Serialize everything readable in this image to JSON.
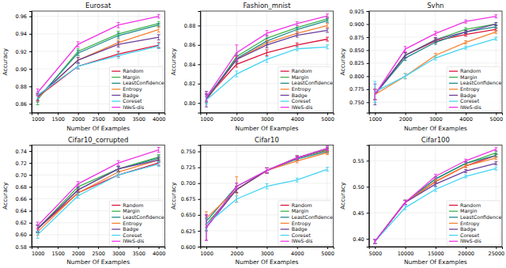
{
  "chart_data": [
    {
      "type": "line",
      "title": "Eurosat",
      "x_label": "Number Of Examples",
      "y_label": "Accuracy",
      "x": [
        1000,
        2000,
        3000,
        4000
      ],
      "xlim": [
        850,
        4150
      ],
      "xticks": [
        1000,
        1500,
        2000,
        2500,
        3000,
        3500,
        4000
      ],
      "ylim": [
        0.85,
        0.966
      ],
      "yticks": [
        0.86,
        0.88,
        {
          "value": 0.9,
          "label": "0.90"
        },
        0.92,
        0.94,
        0.96
      ],
      "grid": true,
      "legend": "lower right",
      "series": [
        {
          "name": "Random",
          "color": "#dc143c",
          "values": [
            0.868,
            0.903,
            0.917,
            0.927
          ],
          "errors": [
            0.004,
            0.003,
            0.003,
            0.003
          ]
        },
        {
          "name": "Margin",
          "color": "#3cb44b",
          "values": [
            0.865,
            0.92,
            0.94,
            0.952
          ],
          "errors": [
            0.006,
            0.003,
            0.003,
            0.002
          ]
        },
        {
          "name": "LeastConfidence",
          "color": "#1f8a8a",
          "values": [
            0.866,
            0.918,
            0.938,
            0.95
          ],
          "errors": [
            0.004,
            0.003,
            0.003,
            0.002
          ]
        },
        {
          "name": "Entropy",
          "color": "#f58231",
          "values": [
            0.867,
            0.91,
            0.93,
            0.945
          ],
          "errors": [
            0.004,
            0.003,
            0.003,
            0.003
          ]
        },
        {
          "name": "Badge",
          "color": "#6a3d9a",
          "values": [
            0.868,
            0.91,
            0.928,
            0.936
          ],
          "errors": [
            0.004,
            0.003,
            0.003,
            0.003
          ]
        },
        {
          "name": "Coreset",
          "color": "#42d4f4",
          "values": [
            0.87,
            0.903,
            0.915,
            0.926
          ],
          "errors": [
            0.004,
            0.003,
            0.003,
            0.003
          ]
        },
        {
          "name": "IWeS-dis",
          "color": "#f032e6",
          "values": [
            0.873,
            0.928,
            0.95,
            0.96
          ],
          "errors": [
            0.004,
            0.003,
            0.003,
            0.002
          ]
        }
      ]
    },
    {
      "type": "line",
      "title": "Fashion_mnist",
      "x_label": "Number Of Examples",
      "y_label": "Accuracy",
      "x": [
        1000,
        2000,
        3000,
        4000,
        5000
      ],
      "xlim": [
        800,
        5200
      ],
      "xticks": [
        1000,
        2000,
        3000,
        4000,
        5000
      ],
      "ylim": [
        0.79,
        0.895
      ],
      "yticks": [
        {
          "value": 0.8,
          "label": "0.80"
        },
        0.82,
        0.84,
        0.86,
        0.88
      ],
      "grid": true,
      "legend": "lower right",
      "series": [
        {
          "name": "Random",
          "color": "#dc143c",
          "values": [
            0.805,
            0.84,
            0.852,
            0.86,
            0.866
          ],
          "errors": [
            0.004,
            0.003,
            0.003,
            0.002,
            0.002
          ]
        },
        {
          "name": "Margin",
          "color": "#3cb44b",
          "values": [
            0.803,
            0.848,
            0.867,
            0.878,
            0.887
          ],
          "errors": [
            0.004,
            0.003,
            0.003,
            0.002,
            0.002
          ]
        },
        {
          "name": "LeastConfidence",
          "color": "#1f8a8a",
          "values": [
            0.805,
            0.846,
            0.864,
            0.876,
            0.885
          ],
          "errors": [
            0.004,
            0.003,
            0.003,
            0.002,
            0.002
          ]
        },
        {
          "name": "Entropy",
          "color": "#f58231",
          "values": [
            0.803,
            0.845,
            0.862,
            0.872,
            0.88
          ],
          "errors": [
            0.004,
            0.003,
            0.003,
            0.002,
            0.002
          ]
        },
        {
          "name": "Badge",
          "color": "#6a3d9a",
          "values": [
            0.804,
            0.845,
            0.86,
            0.87,
            0.875
          ],
          "errors": [
            0.008,
            0.004,
            0.003,
            0.002,
            0.002
          ]
        },
        {
          "name": "Coreset",
          "color": "#42d4f4",
          "values": [
            0.803,
            0.83,
            0.845,
            0.856,
            0.858
          ],
          "errors": [
            0.004,
            0.003,
            0.003,
            0.002,
            0.002
          ]
        },
        {
          "name": "IWeS-dis",
          "color": "#f032e6",
          "values": [
            0.806,
            0.852,
            0.872,
            0.882,
            0.89
          ],
          "errors": [
            0.004,
            0.008,
            0.003,
            0.002,
            0.002
          ]
        }
      ]
    },
    {
      "type": "line",
      "title": "Svhn",
      "x_label": "Number Of Examples",
      "y_label": "Accuracy",
      "x": [
        1000,
        2000,
        3000,
        4000,
        5000
      ],
      "xlim": [
        800,
        5200
      ],
      "xticks": [
        1000,
        2000,
        3000,
        4000,
        5000
      ],
      "ylim": [
        0.73,
        0.925
      ],
      "yticks": [
        {
          "value": 0.75,
          "label": "0.750"
        },
        0.775,
        {
          "value": 0.8,
          "label": "0.800"
        },
        0.825,
        {
          "value": 0.85,
          "label": "0.850"
        },
        0.875,
        {
          "value": 0.9,
          "label": "0.900"
        },
        0.925
      ],
      "grid": true,
      "legend": "lower right",
      "series": [
        {
          "name": "Random",
          "color": "#dc143c",
          "values": [
            0.765,
            0.84,
            0.868,
            0.88,
            0.89
          ],
          "errors": [
            0.01,
            0.005,
            0.004,
            0.003,
            0.003
          ]
        },
        {
          "name": "Margin",
          "color": "#3cb44b",
          "values": [
            0.765,
            0.84,
            0.87,
            0.89,
            0.9
          ],
          "errors": [
            0.01,
            0.005,
            0.004,
            0.003,
            0.003
          ]
        },
        {
          "name": "LeastConfidence",
          "color": "#1f8a8a",
          "values": [
            0.765,
            0.835,
            0.865,
            0.885,
            0.895
          ],
          "errors": [
            0.01,
            0.005,
            0.004,
            0.003,
            0.003
          ]
        },
        {
          "name": "Entropy",
          "color": "#f58231",
          "values": [
            0.765,
            0.8,
            0.84,
            0.865,
            0.885
          ],
          "errors": [
            0.01,
            0.005,
            0.004,
            0.003,
            0.003
          ]
        },
        {
          "name": "Badge",
          "color": "#6a3d9a",
          "values": [
            0.765,
            0.84,
            0.87,
            0.885,
            0.9
          ],
          "errors": [
            0.02,
            0.005,
            0.004,
            0.003,
            0.003
          ]
        },
        {
          "name": "Coreset",
          "color": "#42d4f4",
          "values": [
            0.77,
            0.8,
            0.835,
            0.855,
            0.872
          ],
          "errors": [
            0.02,
            0.005,
            0.004,
            0.003,
            0.003
          ]
        },
        {
          "name": "IWeS-dis",
          "color": "#f032e6",
          "values": [
            0.765,
            0.852,
            0.882,
            0.905,
            0.915
          ],
          "errors": [
            0.01,
            0.005,
            0.004,
            0.003,
            0.003
          ]
        }
      ]
    },
    {
      "type": "line",
      "title": "Cifar10_corrupted",
      "x_label": "Number Of Examples",
      "y_label": "Accuracy",
      "x": [
        1000,
        2000,
        3000,
        4000
      ],
      "xlim": [
        850,
        4150
      ],
      "xticks": [
        1000,
        1500,
        2000,
        2500,
        3000,
        3500,
        4000
      ],
      "ylim": [
        0.58,
        0.75
      ],
      "yticks": [
        0.58,
        {
          "value": 0.6,
          "label": "0.60"
        },
        0.62,
        0.64,
        0.66,
        0.68,
        {
          "value": 0.7,
          "label": "0.70"
        },
        0.72,
        0.74
      ],
      "grid": true,
      "legend": "lower right",
      "series": [
        {
          "name": "Random",
          "color": "#dc143c",
          "values": [
            0.61,
            0.67,
            0.7,
            0.72
          ],
          "errors": [
            0.006,
            0.004,
            0.004,
            0.004
          ]
        },
        {
          "name": "Margin",
          "color": "#3cb44b",
          "values": [
            0.61,
            0.68,
            0.71,
            0.73
          ],
          "errors": [
            0.006,
            0.004,
            0.004,
            0.004
          ]
        },
        {
          "name": "LeastConfidence",
          "color": "#1f8a8a",
          "values": [
            0.61,
            0.675,
            0.71,
            0.728
          ],
          "errors": [
            0.006,
            0.004,
            0.004,
            0.004
          ]
        },
        {
          "name": "Entropy",
          "color": "#f58231",
          "values": [
            0.605,
            0.67,
            0.705,
            0.725
          ],
          "errors": [
            0.006,
            0.004,
            0.004,
            0.004
          ]
        },
        {
          "name": "Badge",
          "color": "#6a3d9a",
          "values": [
            0.61,
            0.675,
            0.71,
            0.725
          ],
          "errors": [
            0.006,
            0.004,
            0.004,
            0.004
          ]
        },
        {
          "name": "Coreset",
          "color": "#42d4f4",
          "values": [
            0.6,
            0.665,
            0.7,
            0.718
          ],
          "errors": [
            0.006,
            0.004,
            0.004,
            0.004
          ]
        },
        {
          "name": "IWeS-dis",
          "color": "#f032e6",
          "values": [
            0.615,
            0.685,
            0.72,
            0.742
          ],
          "errors": [
            0.006,
            0.004,
            0.004,
            0.004
          ]
        }
      ]
    },
    {
      "type": "line",
      "title": "Cifar10",
      "x_label": "Number Of Examples",
      "y_label": "Accuracy",
      "x": [
        1000,
        2000,
        3000,
        4000,
        5000
      ],
      "xlim": [
        800,
        5200
      ],
      "xticks": [
        1000,
        2000,
        3000,
        4000,
        5000
      ],
      "ylim": [
        0.6,
        0.76
      ],
      "yticks": [
        {
          "value": 0.6,
          "label": "0.600"
        },
        0.625,
        {
          "value": 0.65,
          "label": "0.650"
        },
        0.675,
        {
          "value": 0.7,
          "label": "0.700"
        },
        0.725,
        {
          "value": 0.75,
          "label": "0.750"
        }
      ],
      "grid": true,
      "legend": "lower right",
      "series": [
        {
          "name": "Random",
          "color": "#dc143c",
          "values": [
            0.635,
            0.69,
            0.72,
            0.74,
            0.752
          ],
          "errors": [
            0.01,
            0.005,
            0.004,
            0.003,
            0.003
          ]
        },
        {
          "name": "Margin",
          "color": "#3cb44b",
          "values": [
            0.635,
            0.69,
            0.72,
            0.74,
            0.753
          ],
          "errors": [
            0.01,
            0.005,
            0.004,
            0.003,
            0.003
          ]
        },
        {
          "name": "LeastConfidence",
          "color": "#1f8a8a",
          "values": [
            0.64,
            0.695,
            0.72,
            0.738,
            0.75
          ],
          "errors": [
            0.01,
            0.005,
            0.004,
            0.003,
            0.003
          ]
        },
        {
          "name": "Entropy",
          "color": "#f58231",
          "values": [
            0.645,
            0.69,
            0.72,
            0.735,
            0.748
          ],
          "errors": [
            0.01,
            0.02,
            0.004,
            0.003,
            0.003
          ]
        },
        {
          "name": "Badge",
          "color": "#6a3d9a",
          "values": [
            0.63,
            0.69,
            0.72,
            0.74,
            0.755
          ],
          "errors": [
            0.02,
            0.005,
            0.004,
            0.003,
            0.003
          ]
        },
        {
          "name": "Coreset",
          "color": "#42d4f4",
          "values": [
            0.635,
            0.675,
            0.695,
            0.705,
            0.722
          ],
          "errors": [
            0.01,
            0.005,
            0.004,
            0.003,
            0.003
          ]
        },
        {
          "name": "IWeS-dis",
          "color": "#f032e6",
          "values": [
            0.63,
            0.695,
            0.72,
            0.74,
            0.755
          ],
          "errors": [
            0.02,
            0.005,
            0.004,
            0.003,
            0.003
          ]
        }
      ]
    },
    {
      "type": "line",
      "title": "Cifar100",
      "x_label": "Number Of Examples",
      "y_label": "Accuracy",
      "x": [
        5000,
        10000,
        15000,
        20000,
        25000
      ],
      "xlim": [
        4000,
        26000
      ],
      "xticks": [
        5000,
        10000,
        15000,
        20000,
        25000
      ],
      "ylim": [
        0.385,
        0.58
      ],
      "yticks": [
        {
          "value": 0.4,
          "label": "0.40"
        },
        0.45,
        {
          "value": 0.5,
          "label": "0.50"
        },
        0.55
      ],
      "grid": true,
      "legend": "lower right",
      "series": [
        {
          "name": "Random",
          "color": "#dc143c",
          "values": [
            0.395,
            0.47,
            0.51,
            0.54,
            0.56
          ],
          "errors": [
            0.004,
            0.004,
            0.004,
            0.003,
            0.003
          ]
        },
        {
          "name": "Margin",
          "color": "#3cb44b",
          "values": [
            0.395,
            0.47,
            0.515,
            0.545,
            0.565
          ],
          "errors": [
            0.004,
            0.004,
            0.004,
            0.003,
            0.003
          ]
        },
        {
          "name": "LeastConfidence",
          "color": "#1f8a8a",
          "values": [
            0.395,
            0.47,
            0.515,
            0.545,
            0.56
          ],
          "errors": [
            0.004,
            0.004,
            0.004,
            0.003,
            0.003
          ]
        },
        {
          "name": "Entropy",
          "color": "#f58231",
          "values": [
            0.395,
            0.47,
            0.51,
            0.54,
            0.555
          ],
          "errors": [
            0.004,
            0.004,
            0.004,
            0.003,
            0.003
          ]
        },
        {
          "name": "Badge",
          "color": "#6a3d9a",
          "values": [
            0.395,
            0.47,
            0.505,
            0.53,
            0.545
          ],
          "errors": [
            0.004,
            0.004,
            0.004,
            0.003,
            0.003
          ]
        },
        {
          "name": "Coreset",
          "color": "#42d4f4",
          "values": [
            0.395,
            0.46,
            0.495,
            0.52,
            0.535
          ],
          "errors": [
            0.004,
            0.004,
            0.004,
            0.003,
            0.003
          ]
        },
        {
          "name": "IWeS-dis",
          "color": "#f032e6",
          "values": [
            0.395,
            0.47,
            0.52,
            0.55,
            0.572
          ],
          "errors": [
            0.004,
            0.004,
            0.004,
            0.003,
            0.003
          ]
        }
      ]
    }
  ]
}
